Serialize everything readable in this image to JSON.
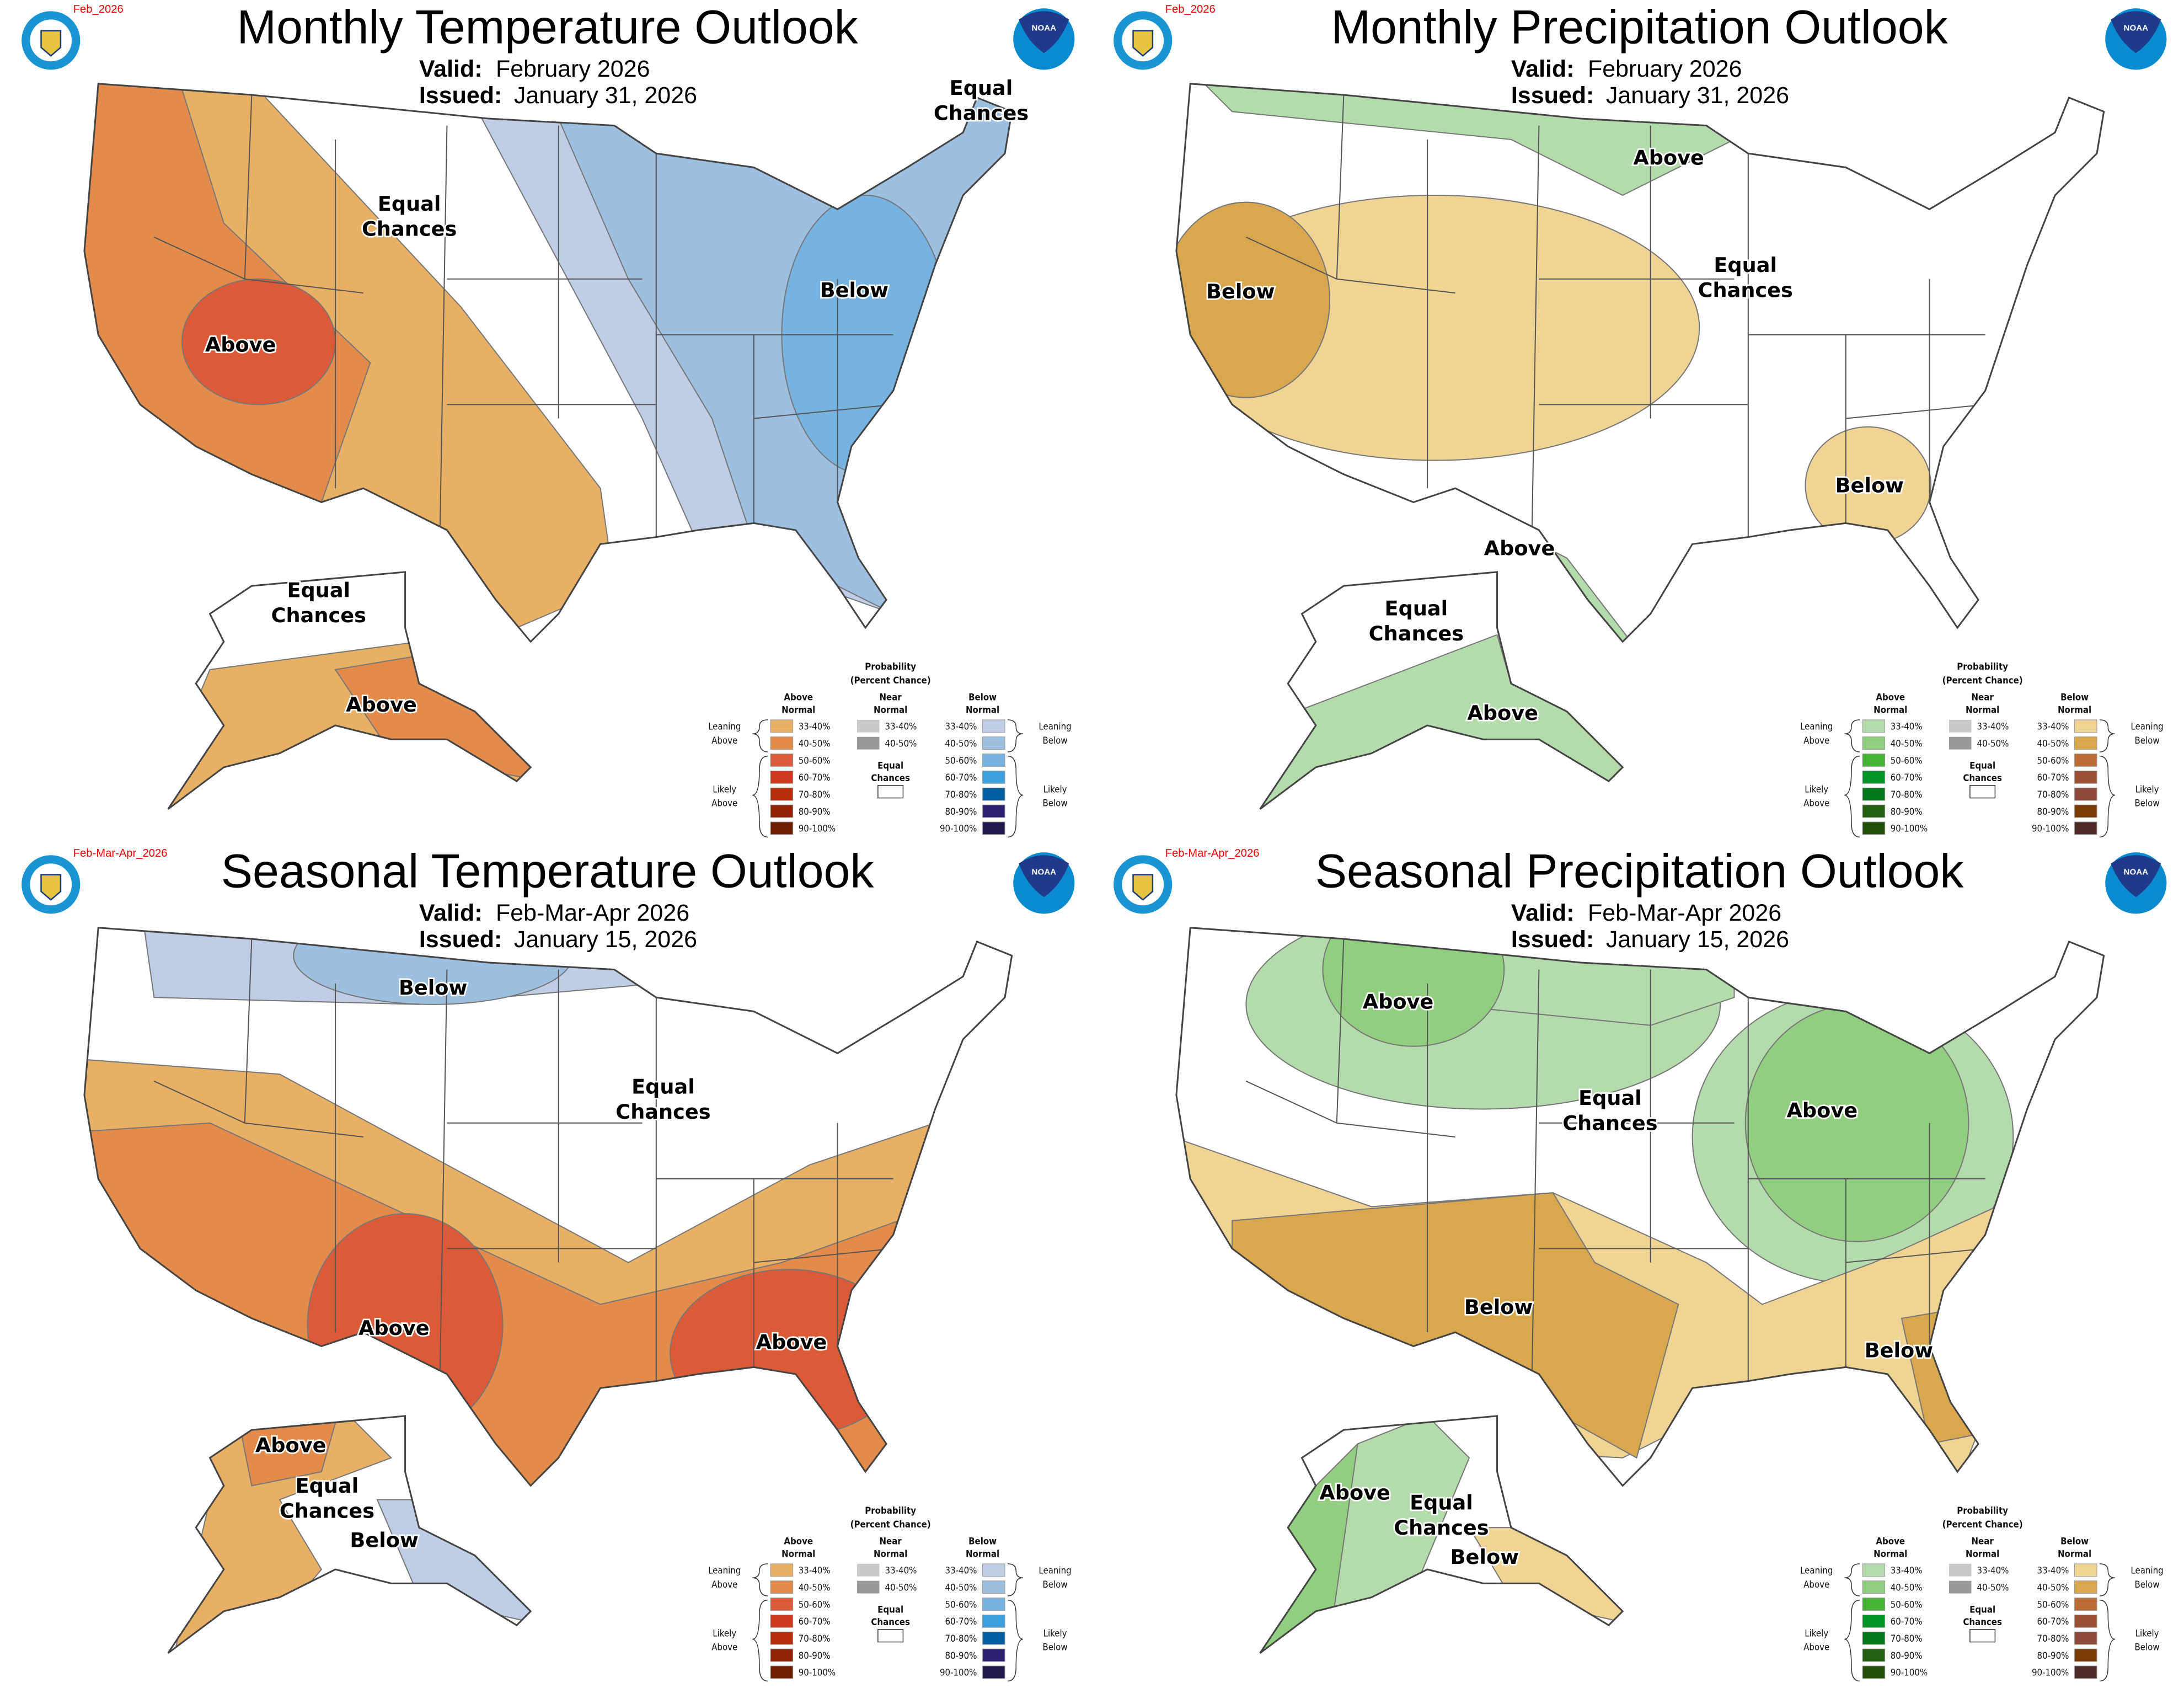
{
  "panels": [
    {
      "id": "monthly-temperature",
      "kind": "temperature",
      "date_tag": "Feb_2026",
      "title": "Monthly Temperature Outlook",
      "valid_label": "Valid:",
      "valid": "February 2026",
      "issued_label": "Issued:",
      "issued": "January 31, 2026",
      "regions": [
        "Equal Chances",
        "Above",
        "Below",
        "Equal Chances",
        "Equal Chances",
        "Above"
      ]
    },
    {
      "id": "monthly-precipitation",
      "kind": "precipitation",
      "date_tag": "Feb_2026",
      "title": "Monthly Precipitation Outlook",
      "valid_label": "Valid:",
      "valid": "February 2026",
      "issued_label": "Issued:",
      "issued": "January 31, 2026",
      "regions": [
        "Above",
        "Below",
        "Equal Chances",
        "Below",
        "Above",
        "Equal Chances",
        "Above"
      ]
    },
    {
      "id": "seasonal-temperature",
      "kind": "temperature",
      "date_tag": "Feb-Mar-Apr_2026",
      "title": "Seasonal Temperature Outlook",
      "valid_label": "Valid:",
      "valid": "Feb-Mar-Apr 2026",
      "issued_label": "Issued:",
      "issued": "January 15, 2026",
      "regions": [
        "Below",
        "Equal Chances",
        "Above",
        "Above",
        "Above",
        "Equal Chances",
        "Below"
      ]
    },
    {
      "id": "seasonal-precipitation",
      "kind": "precipitation",
      "date_tag": "Feb-Mar-Apr_2026",
      "title": "Seasonal Precipitation Outlook",
      "valid_label": "Valid:",
      "valid": "Feb-Mar-Apr 2026",
      "issued_label": "Issued:",
      "issued": "January 15, 2026",
      "regions": [
        "Above",
        "Equal Chances",
        "Above",
        "Below",
        "Below",
        "Above",
        "Equal Chances",
        "Below"
      ]
    }
  ],
  "legend": {
    "title": "Probability",
    "subtitle": "(Percent Chance)",
    "above_header": [
      "Above",
      "Normal"
    ],
    "near_header": [
      "Near",
      "Normal"
    ],
    "below_header": [
      "Below",
      "Normal"
    ],
    "leaning_above": [
      "Leaning",
      "Above"
    ],
    "likely_above": [
      "Likely",
      "Above"
    ],
    "leaning_below": [
      "Leaning",
      "Below"
    ],
    "likely_below": [
      "Likely",
      "Below"
    ],
    "equal_chances": [
      "Equal",
      "Chances"
    ],
    "ranges": [
      "33-40%",
      "40-50%",
      "50-60%",
      "60-70%",
      "70-80%",
      "80-90%",
      "90-100%"
    ],
    "near_ranges": [
      "33-40%",
      "40-50%"
    ],
    "near_colors": [
      "#c8c8c8",
      "#999999"
    ],
    "colors": {
      "temperature": {
        "above": [
          "#e8b065",
          "#e38b4b",
          "#db5a37",
          "#cd3a1e",
          "#b72f0c",
          "#922405",
          "#6d1f00"
        ],
        "below": [
          "#bfcde6",
          "#9dc0e0",
          "#76b3e1",
          "#3c9fdb",
          "#005ea3",
          "#2e2070",
          "#201a4d"
        ]
      },
      "precipitation": {
        "above": [
          "#b3dbab",
          "#92ce7f",
          "#45b335",
          "#009426",
          "#00781c",
          "#245f12",
          "#244f08"
        ],
        "below": [
          "#f0d493",
          "#d8a74e",
          "#bb6b33",
          "#9a4e32",
          "#8e4a3a",
          "#793a05",
          "#4e2b27"
        ]
      }
    }
  }
}
